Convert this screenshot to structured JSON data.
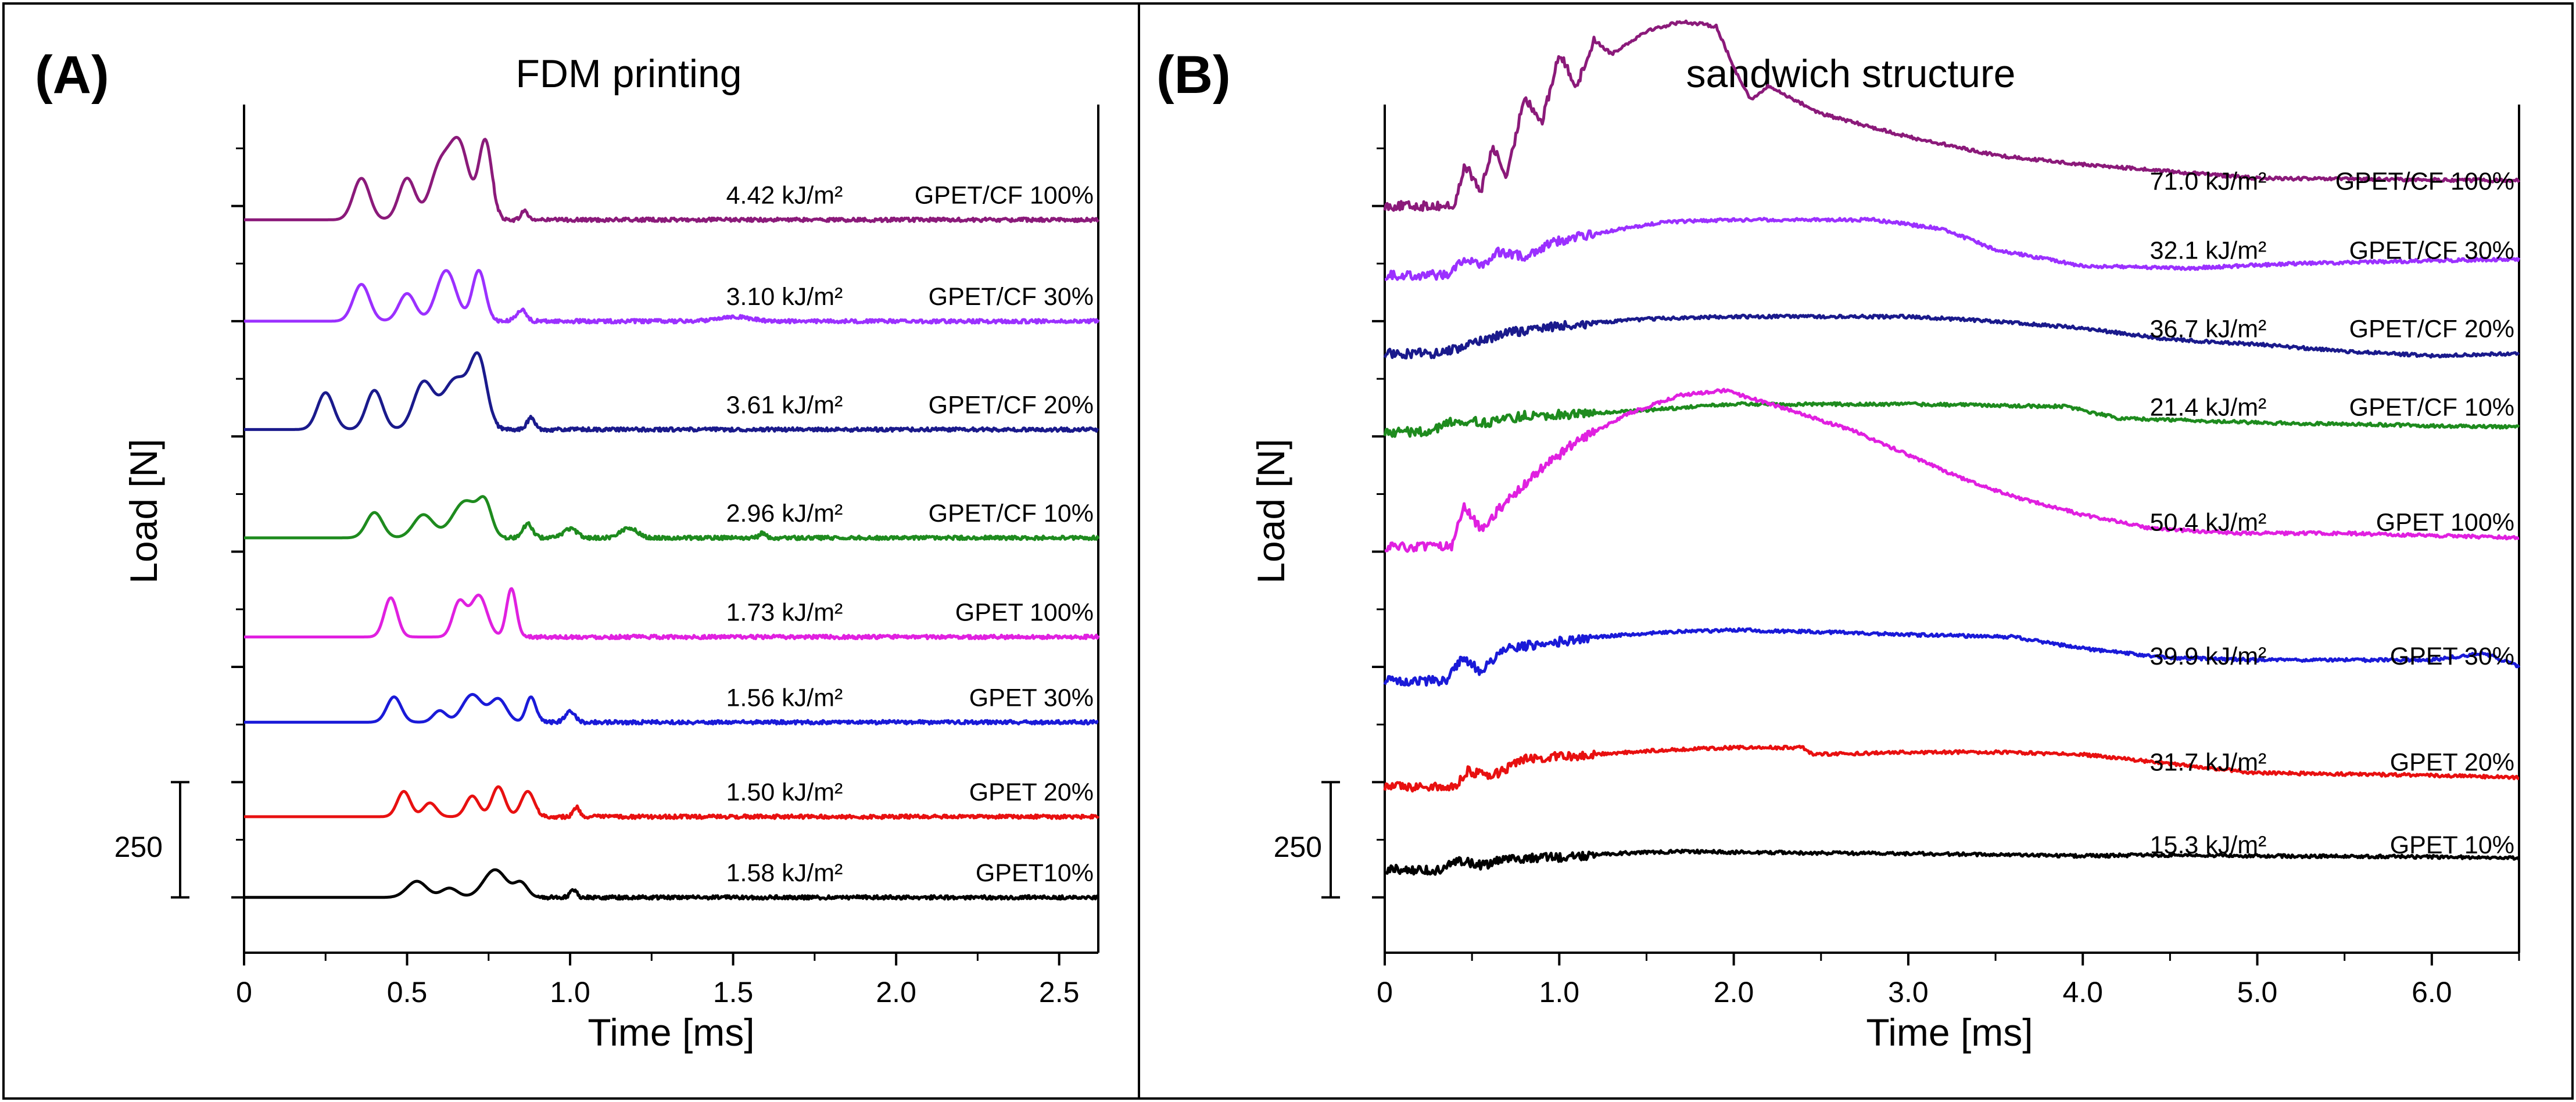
{
  "chart_data": [
    {
      "type": "line",
      "panel": "(A)",
      "title": "FDM printing",
      "xlabel": "Time [ms]",
      "ylabel": "Load [N]",
      "xlim": [
        0,
        2.62
      ],
      "xticks": [
        0,
        0.5,
        1.0,
        1.5,
        2.0,
        2.5
      ],
      "xtick_labels": [
        "0",
        "0.5",
        "1.0",
        "1.5",
        "2.0",
        "2.5"
      ],
      "scale_bar": {
        "label": "250",
        "value_N": 250
      },
      "grid": false,
      "series": [
        {
          "name": "GPET/CF 100%",
          "energy": "4.42 kJ/m²",
          "color": "#8b1a7a",
          "baseline_N": 1470,
          "peaks": [
            [
              0.36,
              90,
              0.025
            ],
            [
              0.5,
              90,
              0.025
            ],
            [
              0.6,
              110,
              0.03
            ],
            [
              0.66,
              160,
              0.03
            ],
            [
              0.74,
              170,
              0.02
            ],
            [
              0.86,
              20,
              0.01
            ]
          ],
          "cutoff": 0.76
        },
        {
          "name": "GPET/CF 30%",
          "energy": "3.10 kJ/m²",
          "color": "#9b30ff",
          "baseline_N": 1250,
          "peaks": [
            [
              0.36,
              80,
              0.025
            ],
            [
              0.5,
              60,
              0.025
            ],
            [
              0.62,
              110,
              0.03
            ],
            [
              0.72,
              110,
              0.02
            ],
            [
              0.85,
              25,
              0.015
            ],
            [
              1.5,
              10,
              0.05
            ]
          ],
          "cutoff": 0.76
        },
        {
          "name": "GPET/CF 20%",
          "energy": "3.61 kJ/m²",
          "color": "#1a1a8c",
          "baseline_N": 1015,
          "peaks": [
            [
              0.25,
              80,
              0.025
            ],
            [
              0.4,
              85,
              0.025
            ],
            [
              0.55,
              100,
              0.03
            ],
            [
              0.65,
              110,
              0.04
            ],
            [
              0.72,
              140,
              0.025
            ],
            [
              0.88,
              25,
              0.012
            ]
          ],
          "cutoff": 0.76
        },
        {
          "name": "GPET/CF 10%",
          "energy": "2.96 kJ/m²",
          "color": "#1e8b1e",
          "baseline_N": 780,
          "peaks": [
            [
              0.4,
              55,
              0.025
            ],
            [
              0.55,
              50,
              0.03
            ],
            [
              0.68,
              80,
              0.04
            ],
            [
              0.74,
              60,
              0.02
            ],
            [
              0.87,
              30,
              0.015
            ],
            [
              1.0,
              20,
              0.02
            ],
            [
              1.18,
              22,
              0.025
            ],
            [
              1.59,
              10,
              0.01
            ]
          ],
          "cutoff": 0.8
        },
        {
          "name": "GPET 100%",
          "energy": "1.73 kJ/m²",
          "color": "#e020e0",
          "baseline_N": 565,
          "peaks": [
            [
              0.45,
              85,
              0.02
            ],
            [
              0.66,
              75,
              0.02
            ],
            [
              0.72,
              90,
              0.025
            ],
            [
              0.82,
              105,
              0.015
            ]
          ],
          "cutoff": 0.86
        },
        {
          "name": "GPET 30%",
          "energy": "1.56 kJ/m²",
          "color": "#1a1ad8",
          "baseline_N": 380,
          "peaks": [
            [
              0.46,
              55,
              0.022
            ],
            [
              0.6,
              25,
              0.02
            ],
            [
              0.7,
              60,
              0.03
            ],
            [
              0.78,
              50,
              0.025
            ],
            [
              0.88,
              55,
              0.015
            ],
            [
              1.0,
              25,
              0.015
            ]
          ],
          "cutoff": 0.9
        },
        {
          "name": "GPET 20%",
          "energy": "1.50 kJ/m²",
          "color": "#e81010",
          "baseline_N": 175,
          "peaks": [
            [
              0.49,
              55,
              0.02
            ],
            [
              0.57,
              30,
              0.02
            ],
            [
              0.7,
              45,
              0.02
            ],
            [
              0.78,
              65,
              0.02
            ],
            [
              0.87,
              55,
              0.02
            ],
            [
              1.02,
              20,
              0.01
            ]
          ],
          "cutoff": 0.9
        },
        {
          "name": "GPET10%",
          "energy": "1.58 kJ/m²",
          "color": "#000000",
          "baseline_N": 0,
          "peaks": [
            [
              0.53,
              35,
              0.03
            ],
            [
              0.63,
              20,
              0.025
            ],
            [
              0.77,
              60,
              0.035
            ],
            [
              0.85,
              30,
              0.02
            ],
            [
              1.01,
              18,
              0.01
            ]
          ],
          "cutoff": 0.9
        }
      ]
    },
    {
      "type": "line",
      "panel": "(B)",
      "title": "sandwich structure",
      "xlabel": "Time [ms]",
      "ylabel": "Load [N]",
      "xlim": [
        0,
        6.5
      ],
      "xticks": [
        0,
        1.0,
        2.0,
        3.0,
        4.0,
        5.0,
        6.0
      ],
      "xtick_labels": [
        "0",
        "1.0",
        "2.0",
        "3.0",
        "4.0",
        "5.0",
        "6.0"
      ],
      "scale_bar": {
        "label": "250",
        "value_N": 250
      },
      "grid": false,
      "series": [
        {
          "name": "GPET/CF 100%",
          "energy": "71.0 kJ/m²",
          "color": "#8b1a7a",
          "baseline_N": 1500,
          "plateau": [
            [
              0,
              0
            ],
            [
              0.4,
              0
            ],
            [
              0.46,
              90
            ],
            [
              0.55,
              30
            ],
            [
              0.62,
              130
            ],
            [
              0.7,
              60
            ],
            [
              0.8,
              240
            ],
            [
              0.9,
              180
            ],
            [
              1.0,
              330
            ],
            [
              1.1,
              260
            ],
            [
              1.2,
              360
            ],
            [
              1.3,
              330
            ],
            [
              1.5,
              380
            ],
            [
              1.7,
              400
            ],
            [
              1.9,
              390
            ],
            [
              2.0,
              300
            ],
            [
              2.1,
              230
            ],
            [
              2.2,
              260
            ],
            [
              2.5,
              200
            ],
            [
              3.0,
              150
            ],
            [
              3.5,
              110
            ],
            [
              4.0,
              90
            ],
            [
              5.0,
              60
            ],
            [
              6.5,
              55
            ]
          ]
        },
        {
          "name": "GPET/CF 30%",
          "energy": "32.1 kJ/m²",
          "color": "#9b30ff",
          "baseline_N": 1350,
          "plateau": [
            [
              0,
              0
            ],
            [
              0.35,
              0
            ],
            [
              0.45,
              35
            ],
            [
              0.55,
              20
            ],
            [
              0.65,
              50
            ],
            [
              0.8,
              40
            ],
            [
              0.95,
              70
            ],
            [
              1.2,
              90
            ],
            [
              1.6,
              115
            ],
            [
              2.0,
              120
            ],
            [
              2.8,
              120
            ],
            [
              3.2,
              100
            ],
            [
              3.5,
              55
            ],
            [
              4.0,
              20
            ],
            [
              4.6,
              15
            ],
            [
              5.2,
              25
            ],
            [
              6.5,
              35
            ]
          ]
        },
        {
          "name": "GPET/CF 20%",
          "energy": "36.7 kJ/m²",
          "color": "#1a1a8c",
          "baseline_N": 1180,
          "plateau": [
            [
              0,
              0
            ],
            [
              0.3,
              0
            ],
            [
              0.5,
              20
            ],
            [
              0.7,
              45
            ],
            [
              1.0,
              60
            ],
            [
              1.5,
              75
            ],
            [
              2.0,
              80
            ],
            [
              3.0,
              80
            ],
            [
              3.5,
              70
            ],
            [
              4.0,
              55
            ],
            [
              4.5,
              30
            ],
            [
              5.0,
              20
            ],
            [
              5.5,
              5
            ],
            [
              6.0,
              -5
            ],
            [
              6.5,
              0
            ]
          ]
        },
        {
          "name": "GPET/CF 10%",
          "energy": "21.4 kJ/m²",
          "color": "#1e8b1e",
          "baseline_N": 1010,
          "plateau": [
            [
              0,
              0
            ],
            [
              0.25,
              0
            ],
            [
              0.4,
              25
            ],
            [
              0.6,
              20
            ],
            [
              0.8,
              35
            ],
            [
              1.2,
              40
            ],
            [
              1.6,
              50
            ],
            [
              2.0,
              60
            ],
            [
              3.0,
              60
            ],
            [
              3.9,
              55
            ],
            [
              4.2,
              30
            ],
            [
              5.0,
              20
            ],
            [
              6.5,
              10
            ]
          ]
        },
        {
          "name": "GPET 100%",
          "energy": "50.4 kJ/m²",
          "color": "#e020e0",
          "baseline_N": 760,
          "plateau": [
            [
              0,
              0
            ],
            [
              0.38,
              0
            ],
            [
              0.45,
              90
            ],
            [
              0.55,
              40
            ],
            [
              0.7,
              100
            ],
            [
              0.9,
              170
            ],
            [
              1.1,
              230
            ],
            [
              1.4,
              290
            ],
            [
              1.7,
              330
            ],
            [
              1.95,
              340
            ],
            [
              2.3,
              300
            ],
            [
              2.7,
              250
            ],
            [
              3.0,
              200
            ],
            [
              3.3,
              150
            ],
            [
              3.6,
              110
            ],
            [
              4.0,
              70
            ],
            [
              4.4,
              40
            ],
            [
              4.9,
              30
            ],
            [
              5.5,
              30
            ],
            [
              6.0,
              25
            ],
            [
              6.5,
              20
            ]
          ]
        },
        {
          "name": "GPET 30%",
          "energy": "39.9 kJ/m²",
          "color": "#1a1ad8",
          "baseline_N": 470,
          "plateau": [
            [
              0,
              0
            ],
            [
              0.35,
              0
            ],
            [
              0.45,
              50
            ],
            [
              0.55,
              20
            ],
            [
              0.7,
              70
            ],
            [
              0.9,
              80
            ],
            [
              1.2,
              95
            ],
            [
              1.6,
              105
            ],
            [
              2.0,
              110
            ],
            [
              2.6,
              105
            ],
            [
              3.0,
              100
            ],
            [
              3.6,
              95
            ],
            [
              4.0,
              70
            ],
            [
              4.5,
              50
            ],
            [
              5.0,
              45
            ],
            [
              6.0,
              45
            ],
            [
              6.3,
              60
            ],
            [
              6.5,
              30
            ]
          ]
        },
        {
          "name": "GPET 20%",
          "energy": "31.7 kJ/m²",
          "color": "#e81010",
          "baseline_N": 240,
          "plateau": [
            [
              0,
              0
            ],
            [
              0.4,
              0
            ],
            [
              0.48,
              35
            ],
            [
              0.6,
              20
            ],
            [
              0.8,
              60
            ],
            [
              1.2,
              70
            ],
            [
              1.6,
              80
            ],
            [
              2.0,
              85
            ],
            [
              2.4,
              85
            ],
            [
              2.45,
              70
            ],
            [
              3.0,
              75
            ],
            [
              3.5,
              75
            ],
            [
              4.0,
              70
            ],
            [
              4.5,
              50
            ],
            [
              5.0,
              30
            ],
            [
              6.0,
              25
            ],
            [
              6.5,
              20
            ]
          ]
        },
        {
          "name": "GPET 10%",
          "energy": "15.3 kJ/m²",
          "color": "#000000",
          "baseline_N": 60,
          "plateau": [
            [
              0,
              0
            ],
            [
              0.3,
              0
            ],
            [
              0.45,
              20
            ],
            [
              0.55,
              10
            ],
            [
              0.7,
              22
            ],
            [
              0.9,
              25
            ],
            [
              1.3,
              35
            ],
            [
              1.7,
              40
            ],
            [
              2.0,
              38
            ],
            [
              3.0,
              35
            ],
            [
              4.0,
              30
            ],
            [
              4.4,
              32
            ],
            [
              5.0,
              30
            ],
            [
              6.0,
              28
            ],
            [
              6.5,
              25
            ]
          ]
        }
      ]
    }
  ]
}
